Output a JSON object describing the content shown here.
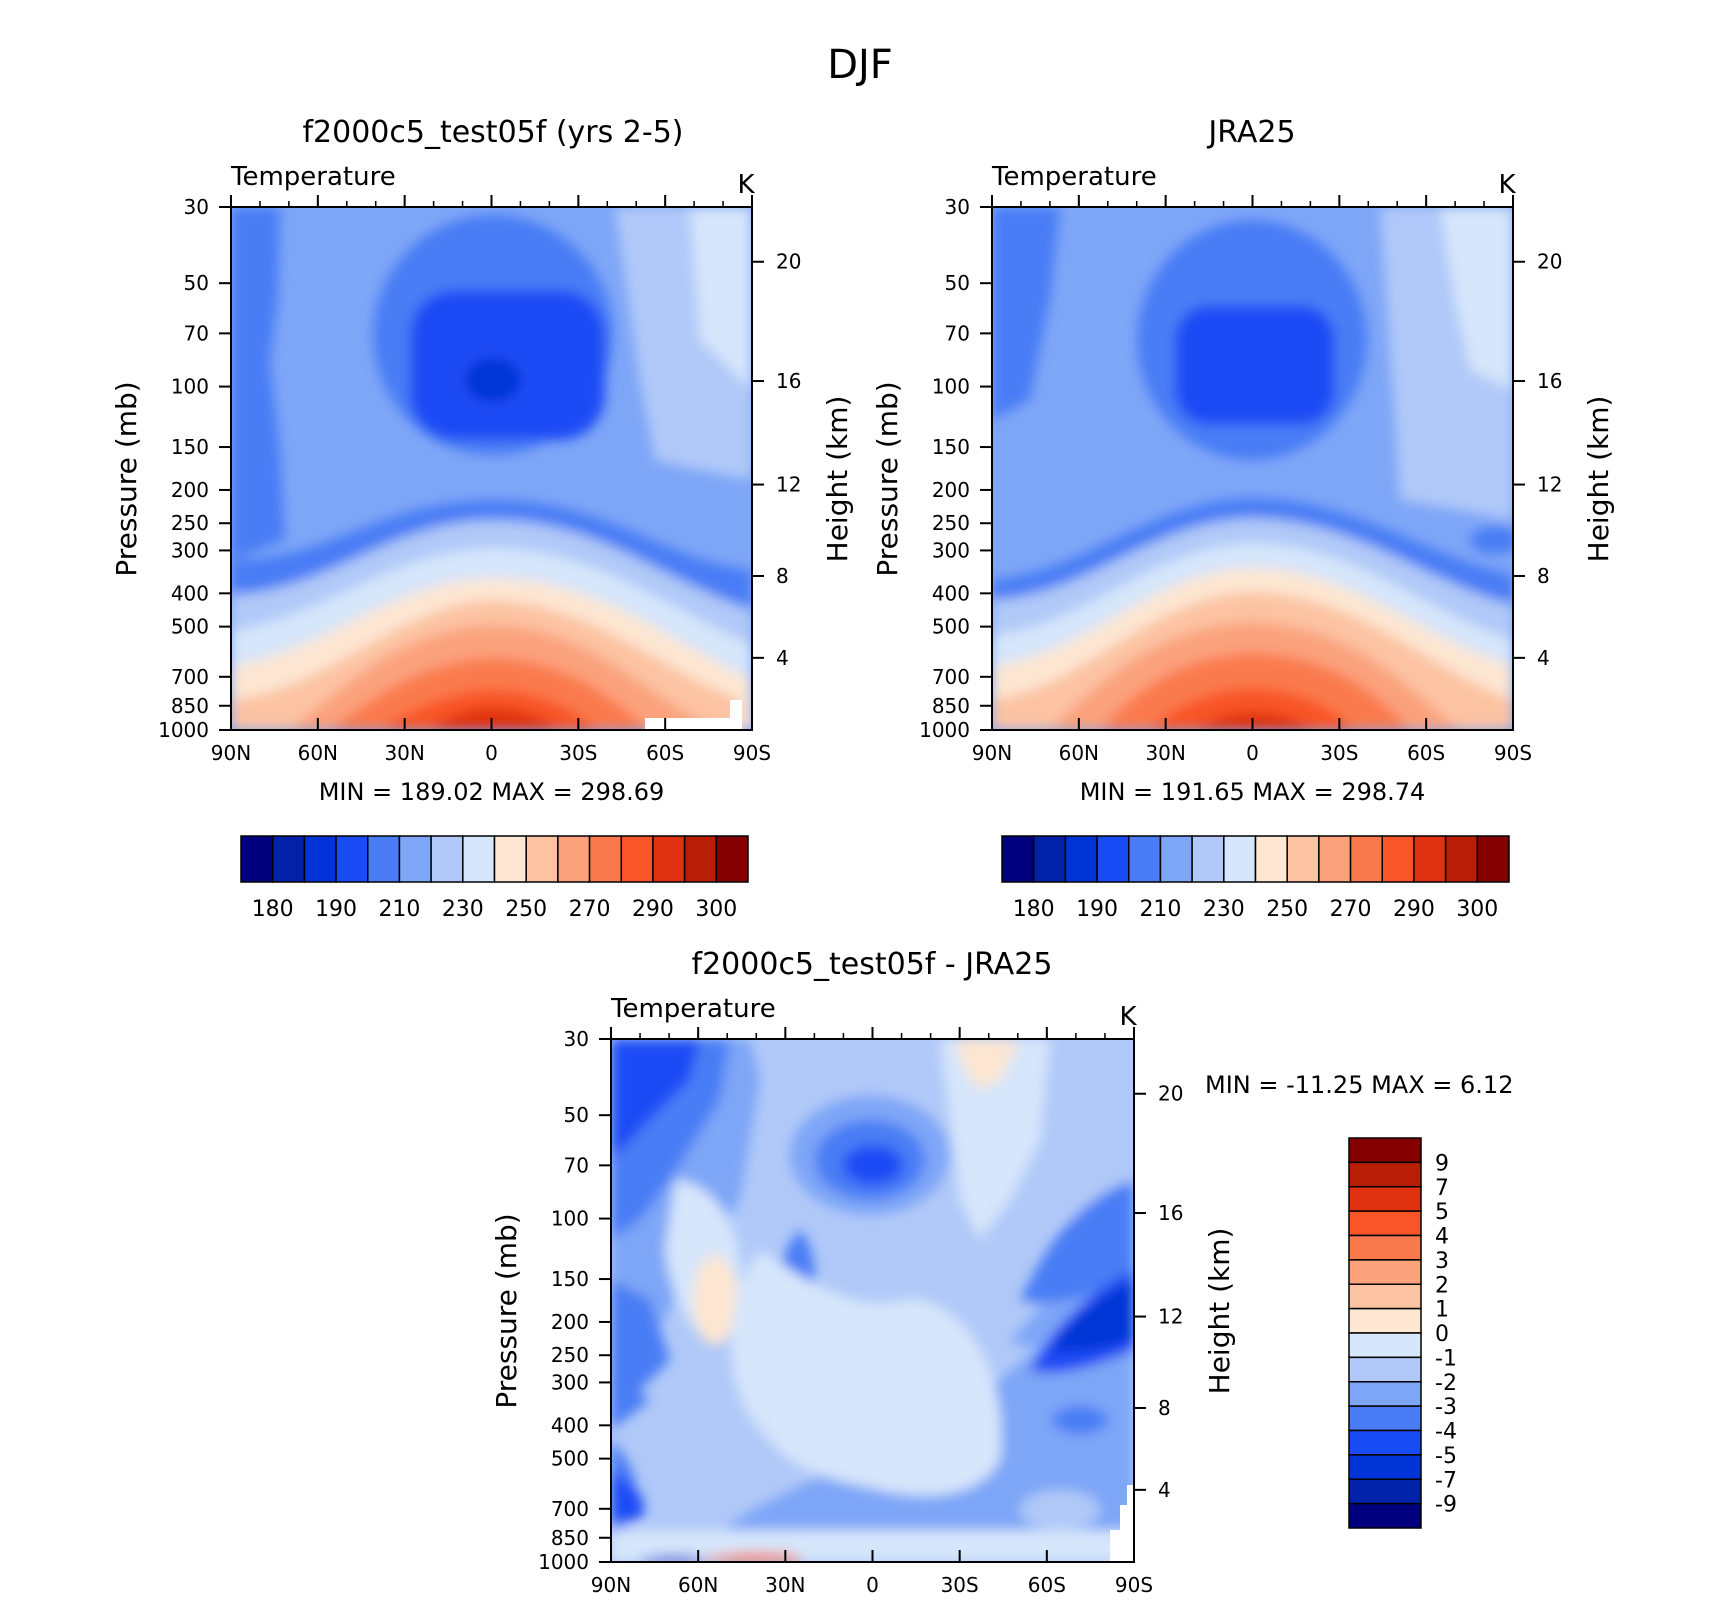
{
  "figure": {
    "title": "DJF"
  },
  "palette": {
    "abs": [
      "#00007f",
      "#0021a8",
      "#0034d6",
      "#1a4cf5",
      "#4a7df5",
      "#7ea6f7",
      "#b0c9f8",
      "#d6e6fb",
      "#fde6d2",
      "#fcc3a3",
      "#fba27d",
      "#fa7a4e",
      "#f85528",
      "#e03210",
      "#b81e06",
      "#840000"
    ],
    "diff": [
      "#00007f",
      "#0021a8",
      "#0034d6",
      "#1a4cf5",
      "#4a7df5",
      "#7ea6f7",
      "#b0c9f8",
      "#d6e6fb",
      "#fde6d2",
      "#fcc3a3",
      "#fba27d",
      "#fa7a4e",
      "#f85528",
      "#e03210",
      "#b81e06",
      "#840000"
    ]
  },
  "chart_data": [
    {
      "type": "heatmap",
      "title": "f2000c5_test05f (yrs 2-5)",
      "variable_label": "Temperature",
      "units": "K",
      "ylabel": "Pressure (mb)",
      "y2label": "Height (km)",
      "x_ticks": [
        "90N",
        "60N",
        "30N",
        "0",
        "30S",
        "60S",
        "90S"
      ],
      "y_ticks": [
        "30",
        "50",
        "70",
        "100",
        "150",
        "200",
        "250",
        "300",
        "400",
        "500",
        "700",
        "850",
        "1000"
      ],
      "y2_ticks": [
        "20",
        "16",
        "12",
        "8",
        "4"
      ],
      "stats_text": "MIN =  189.02   MAX =  298.69",
      "min": 189.02,
      "max": 298.69,
      "colorbar_labels": [
        "180",
        "190",
        "210",
        "230",
        "250",
        "270",
        "290",
        "300"
      ],
      "colorbar_levels": [
        180,
        185,
        190,
        200,
        210,
        220,
        230,
        240,
        250,
        260,
        270,
        280,
        290,
        295,
        300
      ]
    },
    {
      "type": "heatmap",
      "title": "JRA25",
      "variable_label": "Temperature",
      "units": "K",
      "ylabel": "Pressure (mb)",
      "y2label": "Height (km)",
      "x_ticks": [
        "90N",
        "60N",
        "30N",
        "0",
        "30S",
        "60S",
        "90S"
      ],
      "y_ticks": [
        "30",
        "50",
        "70",
        "100",
        "150",
        "200",
        "250",
        "300",
        "400",
        "500",
        "700",
        "850",
        "1000"
      ],
      "y2_ticks": [
        "20",
        "16",
        "12",
        "8",
        "4"
      ],
      "stats_text": "MIN =  191.65   MAX =  298.74",
      "min": 191.65,
      "max": 298.74,
      "colorbar_labels": [
        "180",
        "190",
        "210",
        "230",
        "250",
        "270",
        "290",
        "300"
      ],
      "colorbar_levels": [
        180,
        185,
        190,
        200,
        210,
        220,
        230,
        240,
        250,
        260,
        270,
        280,
        290,
        295,
        300
      ]
    },
    {
      "type": "heatmap",
      "title": "f2000c5_test05f - JRA25",
      "variable_label": "Temperature",
      "units": "K",
      "ylabel": "Pressure (mb)",
      "y2label": "Height (km)",
      "x_ticks": [
        "90N",
        "60N",
        "30N",
        "0",
        "30S",
        "60S",
        "90S"
      ],
      "y_ticks": [
        "30",
        "50",
        "70",
        "100",
        "150",
        "200",
        "250",
        "300",
        "400",
        "500",
        "700",
        "850",
        "1000"
      ],
      "y2_ticks": [
        "20",
        "16",
        "12",
        "8",
        "4"
      ],
      "stats_text": "MIN = -11.25   MAX =    6.12",
      "min": -11.25,
      "max": 6.12,
      "colorbar_labels": [
        "9",
        "7",
        "5",
        "4",
        "3",
        "2",
        "1",
        "0",
        "-1",
        "-2",
        "-3",
        "-4",
        "-5",
        "-7",
        "-9"
      ],
      "colorbar_levels": [
        -9,
        -7,
        -5,
        -4,
        -3,
        -2,
        -1,
        0,
        1,
        2,
        3,
        4,
        5,
        7,
        9
      ]
    }
  ]
}
